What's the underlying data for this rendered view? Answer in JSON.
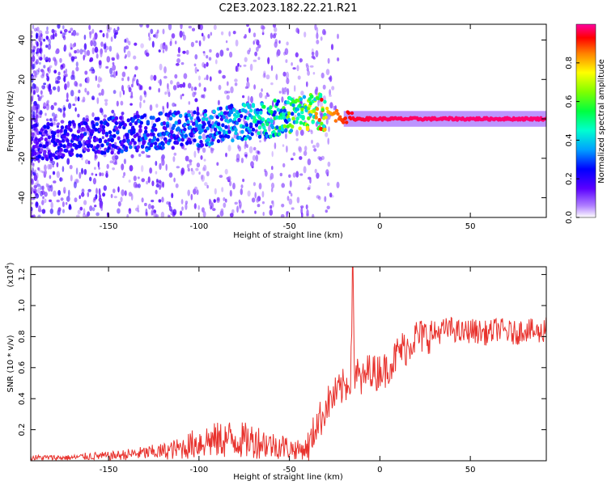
{
  "title": "C2E3.2023.182.22.21.R21",
  "colors": {
    "snr_line": "#e8322d",
    "axis": "#000000"
  },
  "chart_data": [
    {
      "type": "heatmap",
      "name": "spectrogram",
      "xlabel": "Height of straight line (km)",
      "ylabel": "Frequency (Hz)",
      "xlim": [
        -193,
        92
      ],
      "ylim": [
        -50,
        48
      ],
      "xticks": [
        -150,
        -100,
        -50,
        0,
        50
      ],
      "yticks": [
        -40,
        -20,
        0,
        20,
        40
      ],
      "colorbar": {
        "label": "Normalized spectral amplitude",
        "range": [
          0,
          1
        ],
        "ticks": [
          "0.0",
          "0.2",
          "0.4",
          "0.6",
          "0.8"
        ],
        "tick_values": [
          0.0,
          0.2,
          0.4,
          0.6,
          0.8
        ]
      },
      "ridge": {
        "x": [
          -190,
          -175,
          -160,
          -140,
          -120,
          -100,
          -80,
          -60,
          -45,
          -35,
          -25,
          -15,
          0,
          50,
          92
        ],
        "y": [
          -12,
          -11,
          -9,
          -8,
          -6,
          -5,
          -2,
          0,
          3,
          4,
          2,
          0,
          0,
          0,
          0
        ],
        "amplitude": [
          0.2,
          0.2,
          0.22,
          0.25,
          0.28,
          0.3,
          0.35,
          0.45,
          0.55,
          0.7,
          0.85,
          0.95,
          0.97,
          0.98,
          0.98
        ]
      }
    },
    {
      "type": "line",
      "name": "snr",
      "xlabel": "Height of straight line (km)",
      "ylabel": "SNR (10 * v/v)",
      "y_multiplier": "(x10",
      "y_multiplier_exp": "4",
      "y_multiplier_close": ")",
      "xlim": [
        -193,
        92
      ],
      "ylim": [
        0,
        1.25
      ],
      "xticks": [
        -150,
        -100,
        -50,
        0,
        50
      ],
      "yticks": [
        0.2,
        0.4,
        0.6,
        0.8,
        1.0,
        1.2
      ],
      "ytick_labels": [
        "0.2",
        "0.4",
        "0.6",
        "0.8",
        "1.0",
        "1.2"
      ],
      "series": [
        {
          "name": "SNR",
          "x": [
            -193,
            -180,
            -170,
            -160,
            -150,
            -140,
            -130,
            -120,
            -110,
            -100,
            -95,
            -90,
            -85,
            -80,
            -75,
            -70,
            -65,
            -60,
            -55,
            -50,
            -45,
            -40,
            -38,
            -35,
            -32,
            -30,
            -28,
            -25,
            -22,
            -20,
            -18,
            -16,
            -15,
            -14,
            -13,
            -12,
            -10,
            -8,
            -5,
            -2,
            0,
            3,
            5,
            8,
            10,
            12,
            15,
            18,
            20,
            25,
            30,
            35,
            40,
            45,
            50,
            55,
            60,
            65,
            70,
            75,
            80,
            85,
            90,
            92
          ],
          "y": [
            0.02,
            0.02,
            0.02,
            0.03,
            0.03,
            0.04,
            0.05,
            0.06,
            0.08,
            0.12,
            0.13,
            0.13,
            0.14,
            0.14,
            0.13,
            0.13,
            0.12,
            0.1,
            0.1,
            0.08,
            0.07,
            0.08,
            0.12,
            0.25,
            0.28,
            0.35,
            0.38,
            0.42,
            0.45,
            0.48,
            0.5,
            0.55,
            1.25,
            0.55,
            0.58,
            0.55,
            0.5,
            0.55,
            0.6,
            0.55,
            0.6,
            0.58,
            0.62,
            0.65,
            0.7,
            0.72,
            0.73,
            0.78,
            0.8,
            0.8,
            0.82,
            0.84,
            0.85,
            0.82,
            0.84,
            0.83,
            0.82,
            0.85,
            0.83,
            0.82,
            0.85,
            0.83,
            0.82,
            0.9
          ]
        }
      ]
    }
  ]
}
